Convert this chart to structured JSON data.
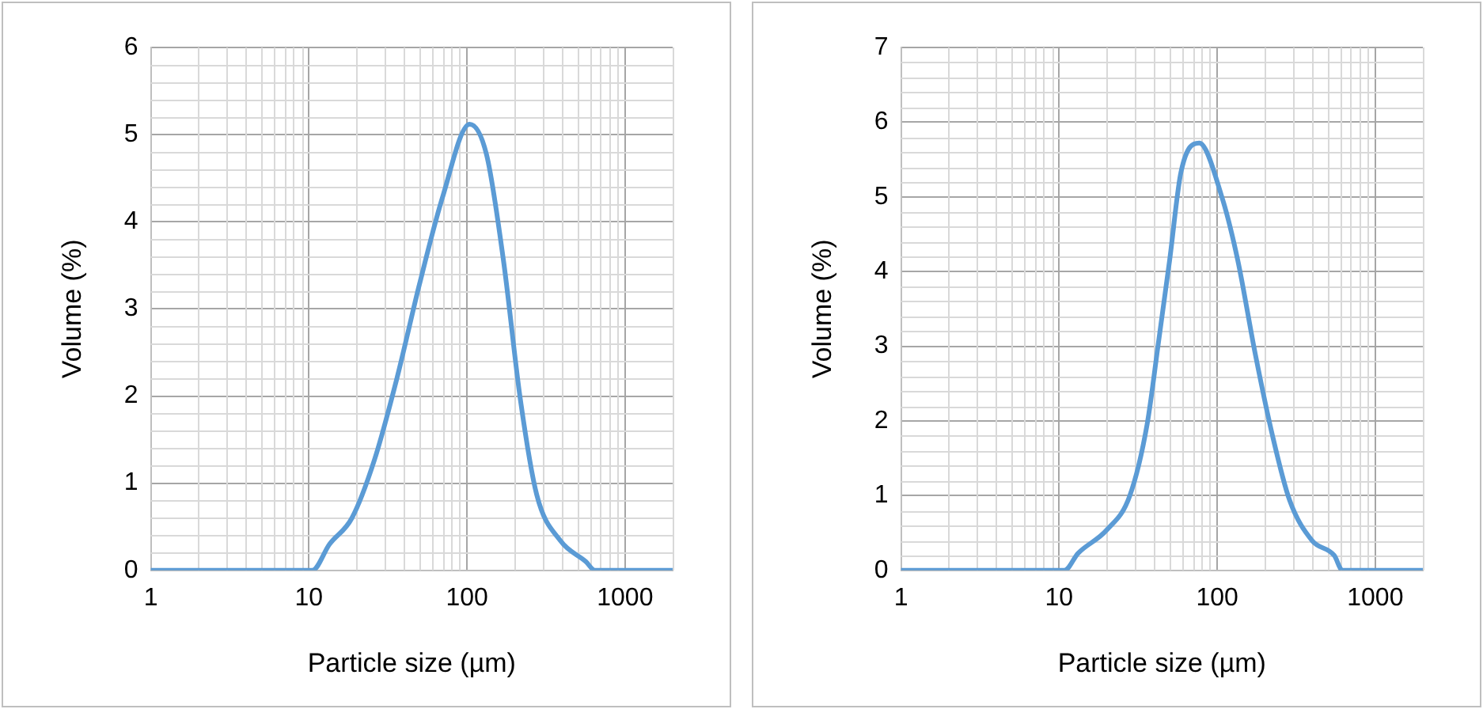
{
  "chart_data": [
    {
      "type": "line",
      "xlabel": "Particle size (µm)",
      "ylabel": "Volume (%)",
      "log": "x",
      "grid": true,
      "legend": false,
      "marker": "none",
      "line_style": "solid",
      "xlim": [
        1,
        2000
      ],
      "xticks": [
        1,
        10,
        100,
        1000
      ],
      "ylim": [
        0,
        6
      ],
      "yticks": [
        0,
        1,
        2,
        3,
        4,
        5,
        6
      ],
      "series": [
        {
          "color": "#5b9bd5",
          "x": [
            1,
            10.5,
            13.5,
            18.7,
            26,
            36,
            50,
            70,
            104,
            133,
            170,
            218,
            276,
            390,
            565,
            645,
            2000
          ],
          "values": [
            0,
            0,
            0.3,
            0.6,
            1.27,
            2.2,
            3.28,
            4.28,
            5.12,
            4.77,
            3.56,
            1.95,
            0.87,
            0.34,
            0.1,
            0,
            0
          ]
        }
      ]
    },
    {
      "type": "line",
      "xlabel": "Particle size (µm)",
      "ylabel": "Volume (%)",
      "log": "x",
      "grid": true,
      "legend": false,
      "marker": "none",
      "line_style": "solid",
      "xlim": [
        1,
        2000
      ],
      "xticks": [
        1,
        10,
        100,
        1000
      ],
      "ylim": [
        0,
        7
      ],
      "yticks": [
        0,
        1,
        2,
        3,
        4,
        5,
        6,
        7
      ],
      "series": [
        {
          "color": "#5b9bd5",
          "x": [
            1,
            10.8,
            13.2,
            20,
            28,
            36,
            42.5,
            50,
            59,
            77,
            107,
            135,
            174,
            224,
            287,
            398,
            550,
            620,
            2000
          ],
          "values": [
            0,
            0,
            0.23,
            0.54,
            1.0,
            1.95,
            3.05,
            4.15,
            5.33,
            5.72,
            5.0,
            4.15,
            2.9,
            1.8,
            0.94,
            0.4,
            0.2,
            0,
            0
          ]
        }
      ]
    }
  ]
}
